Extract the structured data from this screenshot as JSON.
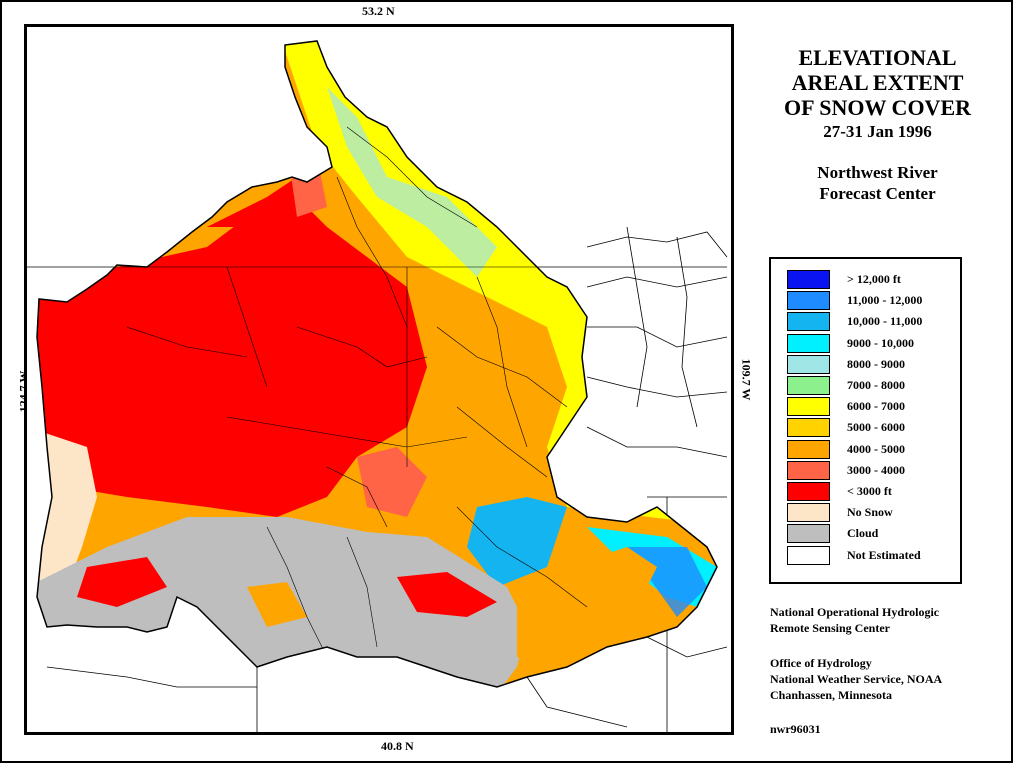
{
  "coordinates": {
    "north": "53.2 N",
    "south": "40.8 N",
    "west": "124.7 W",
    "east": "109.7 W"
  },
  "title": {
    "line1": "ELEVATIONAL",
    "line2": "AREAL EXTENT",
    "line3": "OF SNOW COVER",
    "date": "27-31 Jan 1996",
    "center_line1": "Northwest River",
    "center_line2": "Forecast Center"
  },
  "legend": [
    {
      "label": "> 12,000 ft",
      "color": "#0a14f0"
    },
    {
      "label": "11,000 - 12,000",
      "color": "#1e8cff"
    },
    {
      "label": "10,000 - 11,000",
      "color": "#14b4f0"
    },
    {
      "label": "9000 - 10,000",
      "color": "#00f0ff"
    },
    {
      "label": "8000 - 9000",
      "color": "#a0e6e6"
    },
    {
      "label": "7000 - 8000",
      "color": "#8cf08c"
    },
    {
      "label": "6000 - 7000",
      "color": "#ffff00"
    },
    {
      "label": "5000 - 6000",
      "color": "#ffd200"
    },
    {
      "label": "4000 - 5000",
      "color": "#ffa500"
    },
    {
      "label": "3000 - 4000",
      "color": "#ff6446"
    },
    {
      "label": "< 3000 ft",
      "color": "#ff0000"
    },
    {
      "label": "No Snow",
      "color": "#fde6c8"
    },
    {
      "label": "Cloud",
      "color": "#bebebe"
    },
    {
      "label": "Not Estimated",
      "color": "#ffffff"
    }
  ],
  "credits": {
    "org_line1": "National Operational Hydrologic",
    "org_line2": "Remote Sensing Center",
    "office_line1": "Office of Hydrology",
    "office_line2": "National Weather Service, NOAA",
    "office_line3": "Chanhassen, Minnesota"
  },
  "product_id": "nwr96031"
}
